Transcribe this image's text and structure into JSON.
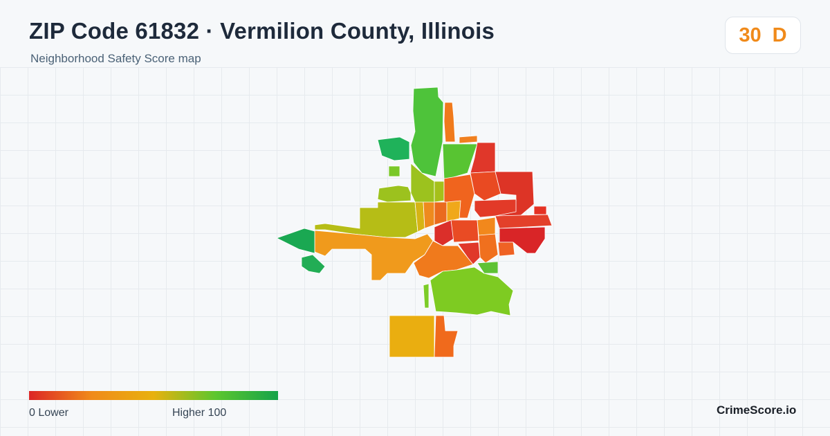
{
  "header": {
    "title": "ZIP Code 61832 · Vermilion County, Illinois",
    "subtitle": "Neighborhood Safety Score map"
  },
  "score": {
    "value": "30",
    "grade": "D",
    "color": "#f08a1a"
  },
  "legend": {
    "min_label": "0  Lower",
    "max_label": "Higher  100",
    "scale_colors": [
      "#dc2626",
      "#f08a1a",
      "#e8b10e",
      "#5cc62e",
      "#16a34a"
    ]
  },
  "brand": {
    "name": "CrimeScore.io"
  }
}
